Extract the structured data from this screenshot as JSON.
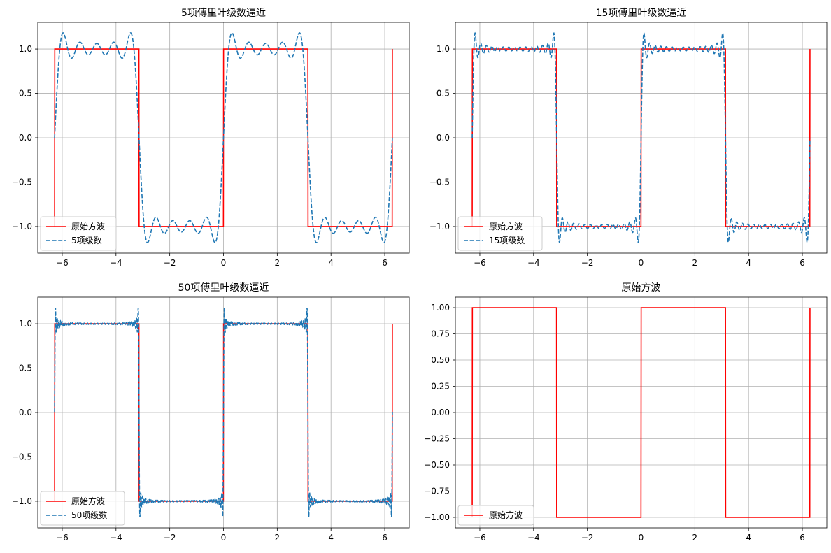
{
  "figure": {
    "background": "#ffffff"
  },
  "colors": {
    "square_wave": "#ff0000",
    "fourier": "#1f77b4",
    "grid": "#b0b0b0"
  },
  "chart_data": [
    {
      "type": "line",
      "title": "5项傅里叶级数逼近",
      "xlabel": "",
      "ylabel": "",
      "xlim": [
        -6.91,
        6.91
      ],
      "ylim": [
        -1.3,
        1.3
      ],
      "x_ticks": [
        -6,
        -4,
        -2,
        0,
        2,
        4,
        6
      ],
      "x_tick_labels": [
        "−6",
        "−4",
        "−2",
        "0",
        "2",
        "4",
        "6"
      ],
      "y_ticks": [
        -1.0,
        -0.5,
        0.0,
        0.5,
        1.0
      ],
      "y_tick_labels": [
        "−1.0",
        "−0.5",
        "0.0",
        "0.5",
        "1.0"
      ],
      "grid": true,
      "legend_location": "lower-left",
      "x_range": [
        -6.2832,
        6.2832
      ],
      "series": [
        {
          "name": "原始方波",
          "kind": "square",
          "style": "solid",
          "color": "#ff0000"
        },
        {
          "name": "5项级数",
          "kind": "fourier",
          "terms": 5,
          "style": "dashed",
          "color": "#1f77b4"
        }
      ]
    },
    {
      "type": "line",
      "title": "15项傅里叶级数逼近",
      "xlabel": "",
      "ylabel": "",
      "xlim": [
        -6.91,
        6.91
      ],
      "ylim": [
        -1.3,
        1.3
      ],
      "x_ticks": [
        -6,
        -4,
        -2,
        0,
        2,
        4,
        6
      ],
      "x_tick_labels": [
        "−6",
        "−4",
        "−2",
        "0",
        "2",
        "4",
        "6"
      ],
      "y_ticks": [
        -1.0,
        -0.5,
        0.0,
        0.5,
        1.0
      ],
      "y_tick_labels": [
        "−1.0",
        "−0.5",
        "0.0",
        "0.5",
        "1.0"
      ],
      "grid": true,
      "legend_location": "lower-left",
      "x_range": [
        -6.2832,
        6.2832
      ],
      "series": [
        {
          "name": "原始方波",
          "kind": "square",
          "style": "solid",
          "color": "#ff0000"
        },
        {
          "name": "15项级数",
          "kind": "fourier",
          "terms": 15,
          "style": "dashed",
          "color": "#1f77b4"
        }
      ]
    },
    {
      "type": "line",
      "title": "50项傅里叶级数逼近",
      "xlabel": "",
      "ylabel": "",
      "xlim": [
        -6.91,
        6.91
      ],
      "ylim": [
        -1.3,
        1.3
      ],
      "x_ticks": [
        -6,
        -4,
        -2,
        0,
        2,
        4,
        6
      ],
      "x_tick_labels": [
        "−6",
        "−4",
        "−2",
        "0",
        "2",
        "4",
        "6"
      ],
      "y_ticks": [
        -1.0,
        -0.5,
        0.0,
        0.5,
        1.0
      ],
      "y_tick_labels": [
        "−1.0",
        "−0.5",
        "0.0",
        "0.5",
        "1.0"
      ],
      "grid": true,
      "legend_location": "lower-left",
      "x_range": [
        -6.2832,
        6.2832
      ],
      "series": [
        {
          "name": "原始方波",
          "kind": "square",
          "style": "solid",
          "color": "#ff0000"
        },
        {
          "name": "50项级数",
          "kind": "fourier",
          "terms": 50,
          "style": "dashed",
          "color": "#1f77b4"
        }
      ]
    },
    {
      "type": "line",
      "title": "原始方波",
      "xlabel": "",
      "ylabel": "",
      "xlim": [
        -6.91,
        6.91
      ],
      "ylim": [
        -1.1,
        1.1
      ],
      "x_ticks": [
        -6,
        -4,
        -2,
        0,
        2,
        4,
        6
      ],
      "x_tick_labels": [
        "−6",
        "−4",
        "−2",
        "0",
        "2",
        "4",
        "6"
      ],
      "y_ticks": [
        -1.0,
        -0.75,
        -0.5,
        -0.25,
        0.0,
        0.25,
        0.5,
        0.75,
        1.0
      ],
      "y_tick_labels": [
        "−1.00",
        "−0.75",
        "−0.50",
        "−0.25",
        "0.00",
        "0.25",
        "0.50",
        "0.75",
        "1.00"
      ],
      "grid": true,
      "legend_location": "lower-left",
      "x_range": [
        -6.2832,
        6.2832
      ],
      "series": [
        {
          "name": "原始方波",
          "kind": "square",
          "style": "solid",
          "color": "#ff0000"
        }
      ]
    }
  ]
}
